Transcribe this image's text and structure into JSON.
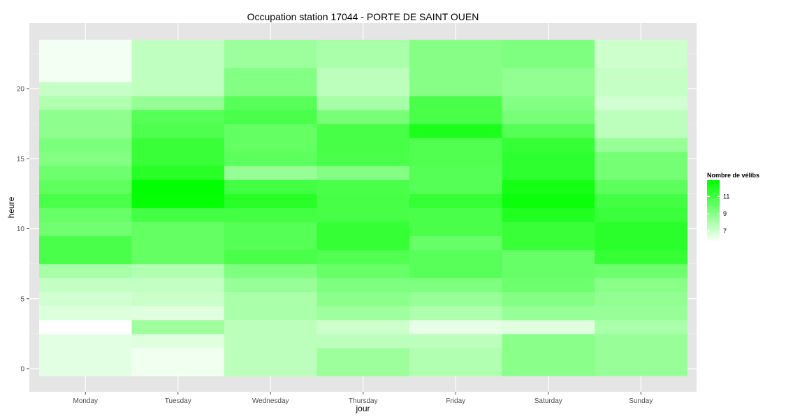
{
  "chart_data": {
    "type": "heatmap",
    "title": "Occupation station 17044 - PORTE DE SAINT OUEN",
    "xlabel": "jour",
    "ylabel": "heure",
    "x_categories": [
      "Monday",
      "Tuesday",
      "Wednesday",
      "Thursday",
      "Friday",
      "Saturday",
      "Sunday"
    ],
    "y_hours": [
      0,
      1,
      2,
      3,
      4,
      5,
      6,
      7,
      8,
      9,
      10,
      11,
      12,
      13,
      14,
      15,
      16,
      17,
      18,
      19,
      20,
      21,
      22,
      23
    ],
    "y_ticks": [
      0,
      5,
      10,
      15,
      20
    ],
    "y_range": [
      -0.5,
      23.5
    ],
    "values": [
      [
        6.5,
        6.5,
        6.5,
        5.7,
        6.7,
        7.0,
        7.4,
        8.2,
        10.8,
        10.8,
        9.7,
        10.0,
        10.8,
        10.2,
        9.8,
        9.2,
        9.4,
        8.9,
        8.9,
        8.0,
        7.3,
        6.0,
        6.0,
        6.0
      ],
      [
        6.1,
        6.1,
        6.6,
        8.4,
        6.6,
        7.2,
        7.4,
        7.9,
        10.1,
        10.1,
        10.1,
        11.0,
        12.8,
        12.9,
        11.8,
        11.3,
        11.3,
        10.7,
        10.5,
        8.7,
        7.5,
        7.5,
        7.5,
        7.5
      ],
      [
        7.6,
        7.6,
        7.6,
        7.6,
        8.1,
        8.1,
        8.6,
        9.3,
        10.8,
        10.5,
        10.5,
        11.0,
        11.8,
        11.0,
        8.7,
        10.3,
        10.1,
        10.1,
        10.8,
        10.4,
        9.2,
        9.2,
        8.5,
        8.5
      ],
      [
        8.5,
        8.5,
        7.6,
        7.1,
        8.4,
        9.0,
        9.3,
        10.0,
        10.6,
        11.4,
        11.4,
        10.9,
        10.9,
        10.8,
        9.2,
        10.8,
        10.9,
        10.9,
        9.5,
        8.2,
        7.6,
        7.6,
        8.1,
        8.1
      ],
      [
        7.9,
        7.9,
        7.6,
        6.4,
        8.0,
        8.6,
        9.3,
        10.4,
        10.4,
        10.0,
        10.8,
        10.8,
        11.4,
        10.5,
        10.5,
        10.6,
        10.6,
        12.1,
        10.8,
        10.8,
        9.1,
        9.1,
        9.1,
        9.1
      ],
      [
        9.0,
        9.0,
        9.0,
        6.6,
        8.6,
        9.2,
        9.8,
        10.0,
        10.0,
        11.3,
        11.3,
        12.0,
        12.6,
        12.3,
        11.6,
        11.6,
        11.4,
        10.5,
        9.5,
        9.2,
        8.8,
        8.8,
        9.3,
        9.3
      ],
      [
        8.6,
        8.6,
        8.6,
        8.1,
        8.6,
        8.8,
        9.0,
        9.8,
        11.4,
        11.7,
        11.7,
        11.2,
        11.0,
        10.3,
        9.6,
        9.6,
        8.6,
        7.6,
        7.6,
        7.0,
        7.3,
        7.3,
        7.1,
        7.1
      ]
    ],
    "legend": {
      "title": "Nombre de vélibs",
      "breaks": [
        7,
        9,
        11
      ],
      "range": [
        5.7,
        12.9
      ],
      "low_color": "#ffffff",
      "high_color": "#00ff00",
      "position": "right"
    },
    "panel_background": "#e5e5e5",
    "grid": true
  }
}
